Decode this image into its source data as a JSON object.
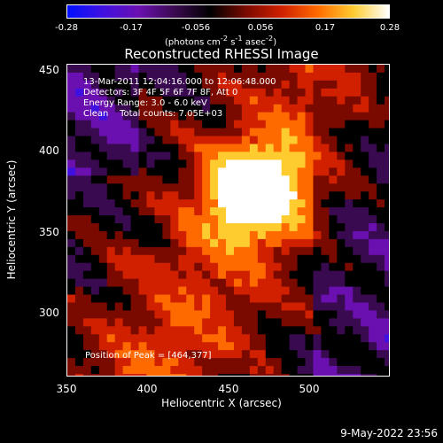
{
  "title": "Reconstructed RHESSI Image",
  "colorbar": {
    "ticks": [
      "-0.28",
      "-0.17",
      "-0.056",
      "0.056",
      "0.17",
      "0.28"
    ],
    "units_html": "(photons cm<sup>-2</sup> s<sup>-1</sup> asec<sup>-2</sup>)",
    "colors": [
      "#0010ff",
      "#4010e0",
      "#6a10b0",
      "#3a0a50",
      "#000000",
      "#7a0a00",
      "#d02000",
      "#ff6a00",
      "#ffcc30",
      "#ffffff"
    ]
  },
  "info": {
    "time": "13-Mar-2011 12:04:16.000 to 12:06:48.000",
    "detectors": "Detectors: 3F 4F 5F 6F 7F 8F, Att 0",
    "energy": "Energy Range: 3.0 - 6.0 keV",
    "clean": "Clean    Total counts: 7.05E+03"
  },
  "peak": "Position of Peak = [464,377]",
  "axes": {
    "xlabel": "Heliocentric X (arcsec)",
    "ylabel": "Heliocentric Y (arcsec)",
    "xticks": [
      "350",
      "400",
      "450",
      "500"
    ],
    "yticks": [
      "450",
      "400",
      "350",
      "300"
    ],
    "xlim": [
      350,
      550
    ],
    "ylim": [
      260,
      453
    ]
  },
  "date": "9-May-2022 23:56",
  "chart_data": {
    "type": "heatmap",
    "title": "Reconstructed RHESSI Image",
    "xlabel": "Heliocentric X (arcsec)",
    "ylabel": "Heliocentric Y (arcsec)",
    "xlim": [
      350,
      550
    ],
    "ylim": [
      260,
      453
    ],
    "color_range": [
      -0.28,
      0.28
    ],
    "peak": [
      464,
      377
    ]
  }
}
